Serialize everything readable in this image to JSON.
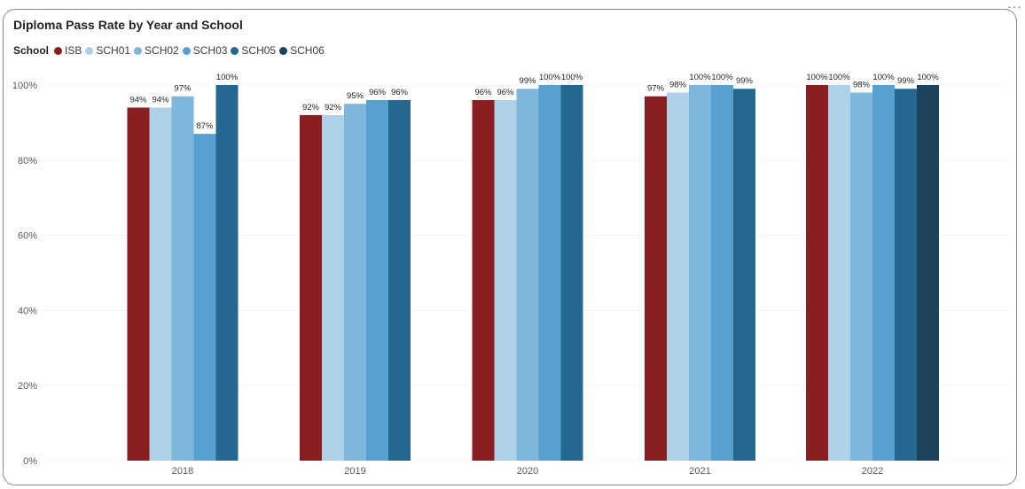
{
  "more_icon": "more-options-icon",
  "chart_data": {
    "type": "bar",
    "title": "Diploma Pass Rate by Year and School",
    "legend_title": "School",
    "legend_position": "top-left",
    "categories": [
      "2018",
      "2019",
      "2020",
      "2021",
      "2022"
    ],
    "series": [
      {
        "name": "ISB",
        "color": "#8b1e23",
        "values": [
          94,
          92,
          96,
          97,
          100
        ],
        "labels": [
          "94%",
          "92%",
          "96%",
          "97%",
          "100%"
        ]
      },
      {
        "name": "SCH01",
        "color": "#aed0e9",
        "values": [
          94,
          92,
          96,
          98,
          100
        ],
        "labels": [
          "94%",
          "92%",
          "96%",
          "98%",
          "100%"
        ]
      },
      {
        "name": "SCH02",
        "color": "#7fb6dc",
        "values": [
          97,
          95,
          99,
          100,
          98
        ],
        "labels": [
          "97%",
          "95%",
          "99%",
          "100%",
          "98%"
        ]
      },
      {
        "name": "SCH03",
        "color": "#56a0cf",
        "values": [
          87,
          96,
          100,
          100,
          100
        ],
        "labels": [
          "87%",
          "96%",
          "100%",
          "100%",
          "100%"
        ]
      },
      {
        "name": "SCH05",
        "color": "#24678f",
        "values": [
          100,
          96,
          100,
          99,
          99
        ],
        "labels": [
          "100%",
          "96%",
          "100%",
          "99%",
          "99%"
        ]
      },
      {
        "name": "SCH06",
        "color": "#1b435c",
        "values": [
          null,
          null,
          null,
          null,
          100
        ],
        "labels": [
          "",
          "",
          "",
          "",
          "100%"
        ]
      }
    ],
    "ylim": [
      0,
      100
    ],
    "yticks": [
      0,
      20,
      40,
      60,
      80,
      100
    ],
    "ytick_labels": [
      "0%",
      "20%",
      "40%",
      "60%",
      "80%",
      "100%"
    ],
    "grid": true,
    "xlabel": "",
    "ylabel": ""
  }
}
